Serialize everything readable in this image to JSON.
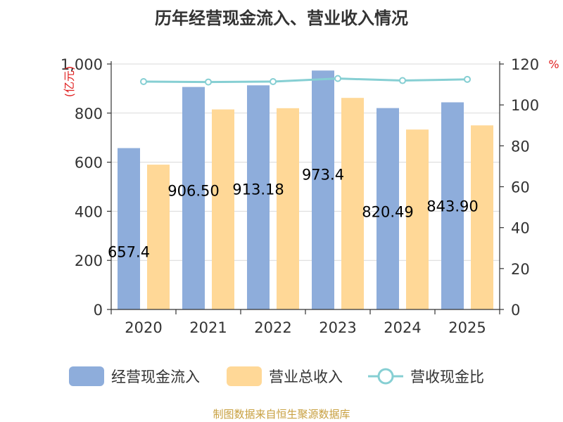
{
  "title": "历年经营现金流入、营业收入情况",
  "source": "制图数据来自恒生聚源数据库",
  "chart_data": {
    "type": "bar",
    "categories": [
      "2020",
      "2021",
      "2022",
      "2023",
      "2024",
      "2025"
    ],
    "series": [
      {
        "name": "经营现金流入",
        "type": "bar",
        "axis": "left",
        "color": "#8eaddb",
        "values": [
          657.4,
          906.5,
          913.18,
          973.4,
          820.49,
          843.9
        ],
        "labels": [
          "657.4",
          "906.50",
          "913.18",
          "973.4",
          "820.49",
          "843.90"
        ]
      },
      {
        "name": "营业总收入",
        "type": "bar",
        "axis": "left",
        "color": "#ffd897",
        "values": [
          590,
          815,
          820,
          862,
          733,
          750
        ]
      },
      {
        "name": "营收现金比",
        "type": "line",
        "axis": "right",
        "color": "#86cfd3",
        "values": [
          111.4,
          111.2,
          111.4,
          112.9,
          111.9,
          112.5
        ]
      }
    ],
    "ylabel_left": "亿元",
    "ylabel_right": "%",
    "ylim_left": [
      0,
      1000
    ],
    "ylim_right": [
      0,
      120
    ],
    "yticks_left": [
      "0",
      "200",
      "400",
      "600",
      "800",
      "1,000"
    ],
    "yticks_right": [
      "0",
      "20",
      "40",
      "60",
      "80",
      "100",
      "120"
    ],
    "grid": true,
    "legend_position": "bottom"
  }
}
